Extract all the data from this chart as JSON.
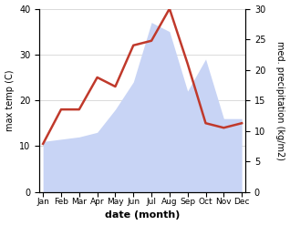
{
  "months": [
    "Jan",
    "Feb",
    "Mar",
    "Apr",
    "May",
    "Jun",
    "Jul",
    "Aug",
    "Sep",
    "Oct",
    "Nov",
    "Dec"
  ],
  "month_positions": [
    0,
    1,
    2,
    3,
    4,
    5,
    6,
    7,
    8,
    9,
    10,
    11
  ],
  "temp_max": [
    10.5,
    18,
    18,
    25,
    23,
    32,
    33,
    40,
    28,
    15,
    14,
    15
  ],
  "precipitation_left": [
    11,
    11.5,
    12,
    13,
    18,
    24,
    37,
    35,
    22,
    29,
    16,
    16
  ],
  "precip_right_ticks": [
    0,
    5,
    10,
    15,
    20,
    25,
    30
  ],
  "temp_color": "#c0392b",
  "precip_color_fill": "#c8d4f5",
  "temp_ylim": [
    0,
    40
  ],
  "temp_yticks": [
    0,
    10,
    20,
    30,
    40
  ],
  "xlabel": "date (month)",
  "ylabel_left": "max temp (C)",
  "ylabel_right": "med. precipitation (kg/m2)",
  "background_color": "#ffffff",
  "grid_color": "#cccccc"
}
